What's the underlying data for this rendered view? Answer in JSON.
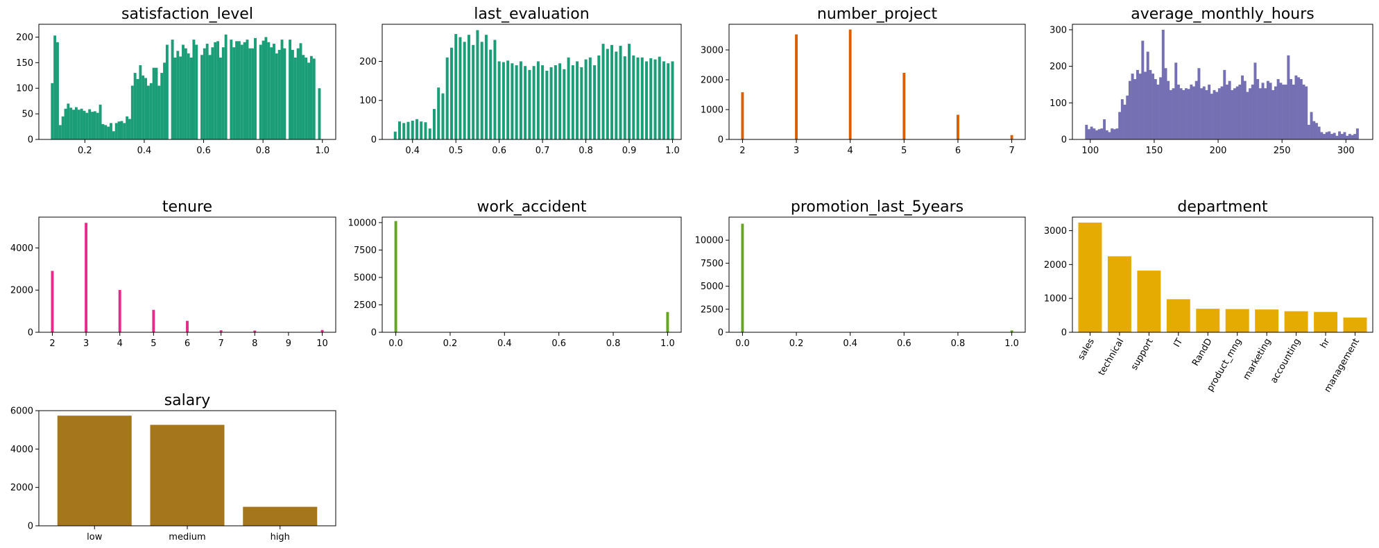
{
  "chart_data": [
    {
      "id": "satisfaction_level",
      "type": "bar",
      "title": "satisfaction_level",
      "color": "#1b9e77",
      "bin_width": 0.0091,
      "xlim": [
        0.045,
        1.045
      ],
      "ylim": [
        0,
        225
      ],
      "xticks": [
        0.2,
        0.4,
        0.6,
        0.8,
        1.0
      ],
      "xtick_labels": [
        "0.2",
        "0.4",
        "0.6",
        "0.8",
        "1.0"
      ],
      "yticks": [
        0,
        50,
        100,
        150,
        200
      ],
      "x": [
        0.09,
        0.099,
        0.108,
        0.117,
        0.126,
        0.135,
        0.144,
        0.153,
        0.162,
        0.171,
        0.18,
        0.189,
        0.198,
        0.207,
        0.216,
        0.225,
        0.234,
        0.243,
        0.252,
        0.261,
        0.27,
        0.279,
        0.288,
        0.297,
        0.306,
        0.315,
        0.324,
        0.333,
        0.342,
        0.351,
        0.36,
        0.369,
        0.378,
        0.387,
        0.396,
        0.405,
        0.414,
        0.423,
        0.432,
        0.441,
        0.45,
        0.459,
        0.468,
        0.477,
        0.495,
        0.504,
        0.513,
        0.522,
        0.531,
        0.54,
        0.549,
        0.558,
        0.567,
        0.576,
        0.594,
        0.603,
        0.612,
        0.621,
        0.63,
        0.639,
        0.648,
        0.657,
        0.666,
        0.675,
        0.693,
        0.702,
        0.711,
        0.72,
        0.729,
        0.738,
        0.747,
        0.756,
        0.765,
        0.774,
        0.792,
        0.801,
        0.81,
        0.819,
        0.828,
        0.837,
        0.846,
        0.855,
        0.864,
        0.873,
        0.891,
        0.9,
        0.909,
        0.918,
        0.927,
        0.936,
        0.945,
        0.954,
        0.963,
        0.972,
        0.99
      ],
      "values": [
        110,
        203,
        190,
        28,
        45,
        60,
        70,
        62,
        58,
        63,
        58,
        60,
        56,
        52,
        59,
        54,
        55,
        52,
        68,
        30,
        28,
        25,
        32,
        16,
        32,
        35,
        36,
        32,
        45,
        40,
        105,
        130,
        118,
        145,
        125,
        120,
        105,
        110,
        140,
        140,
        105,
        130,
        150,
        185,
        195,
        160,
        173,
        162,
        185,
        178,
        168,
        160,
        195,
        185,
        165,
        178,
        187,
        165,
        180,
        190,
        192,
        160,
        180,
        205,
        195,
        180,
        192,
        192,
        185,
        190,
        195,
        178,
        178,
        198,
        185,
        193,
        200,
        190,
        180,
        187,
        168,
        175,
        195,
        178,
        195,
        175,
        160,
        178,
        188,
        165,
        160,
        150,
        163,
        158,
        100
      ]
    },
    {
      "id": "last_evaluation",
      "type": "bar",
      "title": "last_evaluation",
      "color": "#1b9e77",
      "bin_width": 0.0064,
      "xlim": [
        0.33,
        1.02
      ],
      "ylim": [
        0,
        295
      ],
      "xticks": [
        0.4,
        0.5,
        0.6,
        0.7,
        0.8,
        0.9,
        1.0
      ],
      "xtick_labels": [
        "0.4",
        "0.5",
        "0.6",
        "0.7",
        "0.8",
        "0.9",
        "1.0"
      ],
      "yticks": [
        0,
        100,
        200
      ],
      "x": [
        0.36,
        0.37,
        0.38,
        0.39,
        0.4,
        0.41,
        0.42,
        0.43,
        0.44,
        0.45,
        0.46,
        0.47,
        0.48,
        0.49,
        0.5,
        0.51,
        0.52,
        0.53,
        0.54,
        0.55,
        0.56,
        0.57,
        0.58,
        0.59,
        0.6,
        0.61,
        0.62,
        0.63,
        0.64,
        0.65,
        0.66,
        0.67,
        0.68,
        0.69,
        0.7,
        0.71,
        0.72,
        0.73,
        0.74,
        0.75,
        0.76,
        0.77,
        0.78,
        0.79,
        0.8,
        0.81,
        0.82,
        0.83,
        0.84,
        0.85,
        0.86,
        0.87,
        0.88,
        0.89,
        0.9,
        0.91,
        0.92,
        0.93,
        0.94,
        0.95,
        0.96,
        0.97,
        0.98,
        0.99,
        1.0
      ],
      "values": [
        20,
        46,
        42,
        45,
        48,
        52,
        46,
        44,
        28,
        78,
        133,
        118,
        210,
        235,
        270,
        262,
        250,
        268,
        242,
        280,
        250,
        268,
        230,
        255,
        200,
        198,
        202,
        195,
        190,
        200,
        188,
        178,
        188,
        200,
        190,
        176,
        185,
        190,
        195,
        180,
        210,
        190,
        200,
        185,
        205,
        210,
        190,
        215,
        245,
        232,
        242,
        225,
        240,
        213,
        245,
        215,
        210,
        210,
        200,
        208,
        205,
        212,
        200,
        195,
        200
      ]
    },
    {
      "id": "number_project",
      "type": "bar",
      "title": "number_project",
      "color": "#d95f02",
      "bin_width": 0.05,
      "xlim": [
        1.75,
        7.25
      ],
      "ylim": [
        0,
        3860
      ],
      "xticks": [
        2,
        3,
        4,
        5,
        6,
        7
      ],
      "xtick_labels": [
        "2",
        "3",
        "4",
        "5",
        "6",
        "7"
      ],
      "yticks": [
        0,
        1000,
        2000,
        3000
      ],
      "x": [
        2,
        3,
        4,
        5,
        6,
        7
      ],
      "values": [
        1582,
        3520,
        3685,
        2233,
        826,
        145
      ]
    },
    {
      "id": "average_monthly_hours",
      "type": "bar",
      "title": "average_monthly_hours",
      "color": "#7570b3",
      "bin_width": 2.15,
      "xlim": [
        86,
        321
      ],
      "ylim": [
        0,
        315
      ],
      "xticks": [
        100,
        150,
        200,
        250,
        300
      ],
      "xtick_labels": [
        "100",
        "150",
        "200",
        "250",
        "300"
      ],
      "yticks": [
        0,
        100,
        200,
        300
      ],
      "x": [
        97,
        99,
        101,
        103,
        105,
        107,
        109,
        111,
        113,
        115,
        117,
        119,
        121,
        123,
        125,
        127,
        129,
        131,
        133,
        135,
        137,
        139,
        141,
        143,
        145,
        147,
        149,
        151,
        153,
        155,
        157,
        159,
        161,
        163,
        165,
        167,
        169,
        171,
        173,
        175,
        177,
        179,
        181,
        183,
        185,
        187,
        189,
        191,
        193,
        195,
        197,
        199,
        201,
        203,
        205,
        207,
        209,
        211,
        213,
        215,
        217,
        219,
        221,
        223,
        225,
        227,
        229,
        231,
        233,
        235,
        237,
        239,
        241,
        243,
        245,
        247,
        249,
        251,
        253,
        255,
        257,
        259,
        261,
        263,
        265,
        267,
        269,
        271,
        273,
        275,
        277,
        279,
        281,
        283,
        285,
        287,
        289,
        291,
        293,
        295,
        297,
        299,
        301,
        303,
        305,
        307,
        309
      ],
      "values": [
        40,
        28,
        35,
        30,
        25,
        28,
        30,
        55,
        25,
        20,
        30,
        28,
        30,
        75,
        110,
        95,
        120,
        160,
        180,
        165,
        190,
        180,
        270,
        185,
        240,
        190,
        180,
        165,
        150,
        170,
        300,
        195,
        160,
        135,
        140,
        210,
        150,
        140,
        135,
        140,
        138,
        150,
        145,
        160,
        195,
        140,
        145,
        135,
        150,
        125,
        135,
        130,
        140,
        145,
        190,
        150,
        160,
        135,
        140,
        145,
        150,
        175,
        160,
        130,
        140,
        150,
        210,
        165,
        140,
        155,
        140,
        160,
        155,
        135,
        145,
        165,
        155,
        150,
        150,
        230,
        165,
        150,
        175,
        170,
        165,
        150,
        145,
        40,
        75,
        50,
        45,
        35,
        20,
        15,
        20,
        22,
        15,
        18,
        10,
        22,
        15,
        20,
        10,
        15,
        12,
        15,
        30
      ]
    },
    {
      "id": "tenure",
      "type": "bar",
      "title": "tenure",
      "color": "#e7298a",
      "bin_width": 0.08,
      "xlim": [
        1.6,
        10.4
      ],
      "ylim": [
        0,
        5460
      ],
      "xticks": [
        2,
        3,
        4,
        5,
        6,
        7,
        8,
        9,
        10
      ],
      "xtick_labels": [
        "2",
        "3",
        "4",
        "5",
        "6",
        "7",
        "8",
        "9",
        "10"
      ],
      "yticks": [
        0,
        2000,
        4000
      ],
      "x": [
        2,
        3,
        4,
        5,
        6,
        7,
        8,
        10
      ],
      "values": [
        2910,
        5190,
        2005,
        1062,
        542,
        94,
        81,
        107
      ]
    },
    {
      "id": "work_accident",
      "type": "bar",
      "title": "work_accident",
      "color": "#66a61e",
      "bin_width": 0.01,
      "xlim": [
        -0.05,
        1.05
      ],
      "ylim": [
        0,
        10500
      ],
      "xticks": [
        0.0,
        0.2,
        0.4,
        0.6,
        0.8,
        1.0
      ],
      "xtick_labels": [
        "0.0",
        "0.2",
        "0.4",
        "0.6",
        "0.8",
        "1.0"
      ],
      "yticks": [
        0,
        2500,
        5000,
        7500,
        10000
      ],
      "x": [
        0.0,
        1.0
      ],
      "values": [
        10141,
        1850
      ]
    },
    {
      "id": "promotion_last_5years",
      "type": "bar",
      "title": "promotion_last_5years",
      "color": "#66a61e",
      "bin_width": 0.01,
      "xlim": [
        -0.05,
        1.05
      ],
      "ylim": [
        0,
        12500
      ],
      "xticks": [
        0.0,
        0.2,
        0.4,
        0.6,
        0.8,
        1.0
      ],
      "xtick_labels": [
        "0.0",
        "0.2",
        "0.4",
        "0.6",
        "0.8",
        "1.0"
      ],
      "yticks": [
        0,
        2500,
        5000,
        7500,
        10000
      ],
      "x": [
        0.0,
        1.0
      ],
      "values": [
        11788,
        203
      ]
    },
    {
      "id": "department",
      "type": "bar",
      "title": "department",
      "color": "#e6ab02",
      "categories": [
        "sales",
        "technical",
        "support",
        "IT",
        "RandD",
        "product_mng",
        "marketing",
        "accounting",
        "hr",
        "management"
      ],
      "values": [
        3239,
        2244,
        1821,
        976,
        694,
        686,
        673,
        621,
        601,
        436
      ],
      "ylim": [
        0,
        3400
      ],
      "yticks": [
        0,
        1000,
        2000,
        3000
      ],
      "rotate_labels": true
    },
    {
      "id": "salary",
      "type": "bar",
      "title": "salary",
      "color": "#a6761d",
      "categories": [
        "low",
        "medium",
        "high"
      ],
      "values": [
        5740,
        5261,
        990
      ],
      "ylim": [
        0,
        6000
      ],
      "yticks": [
        0,
        2000,
        4000,
        6000
      ],
      "rotate_labels": false
    }
  ]
}
